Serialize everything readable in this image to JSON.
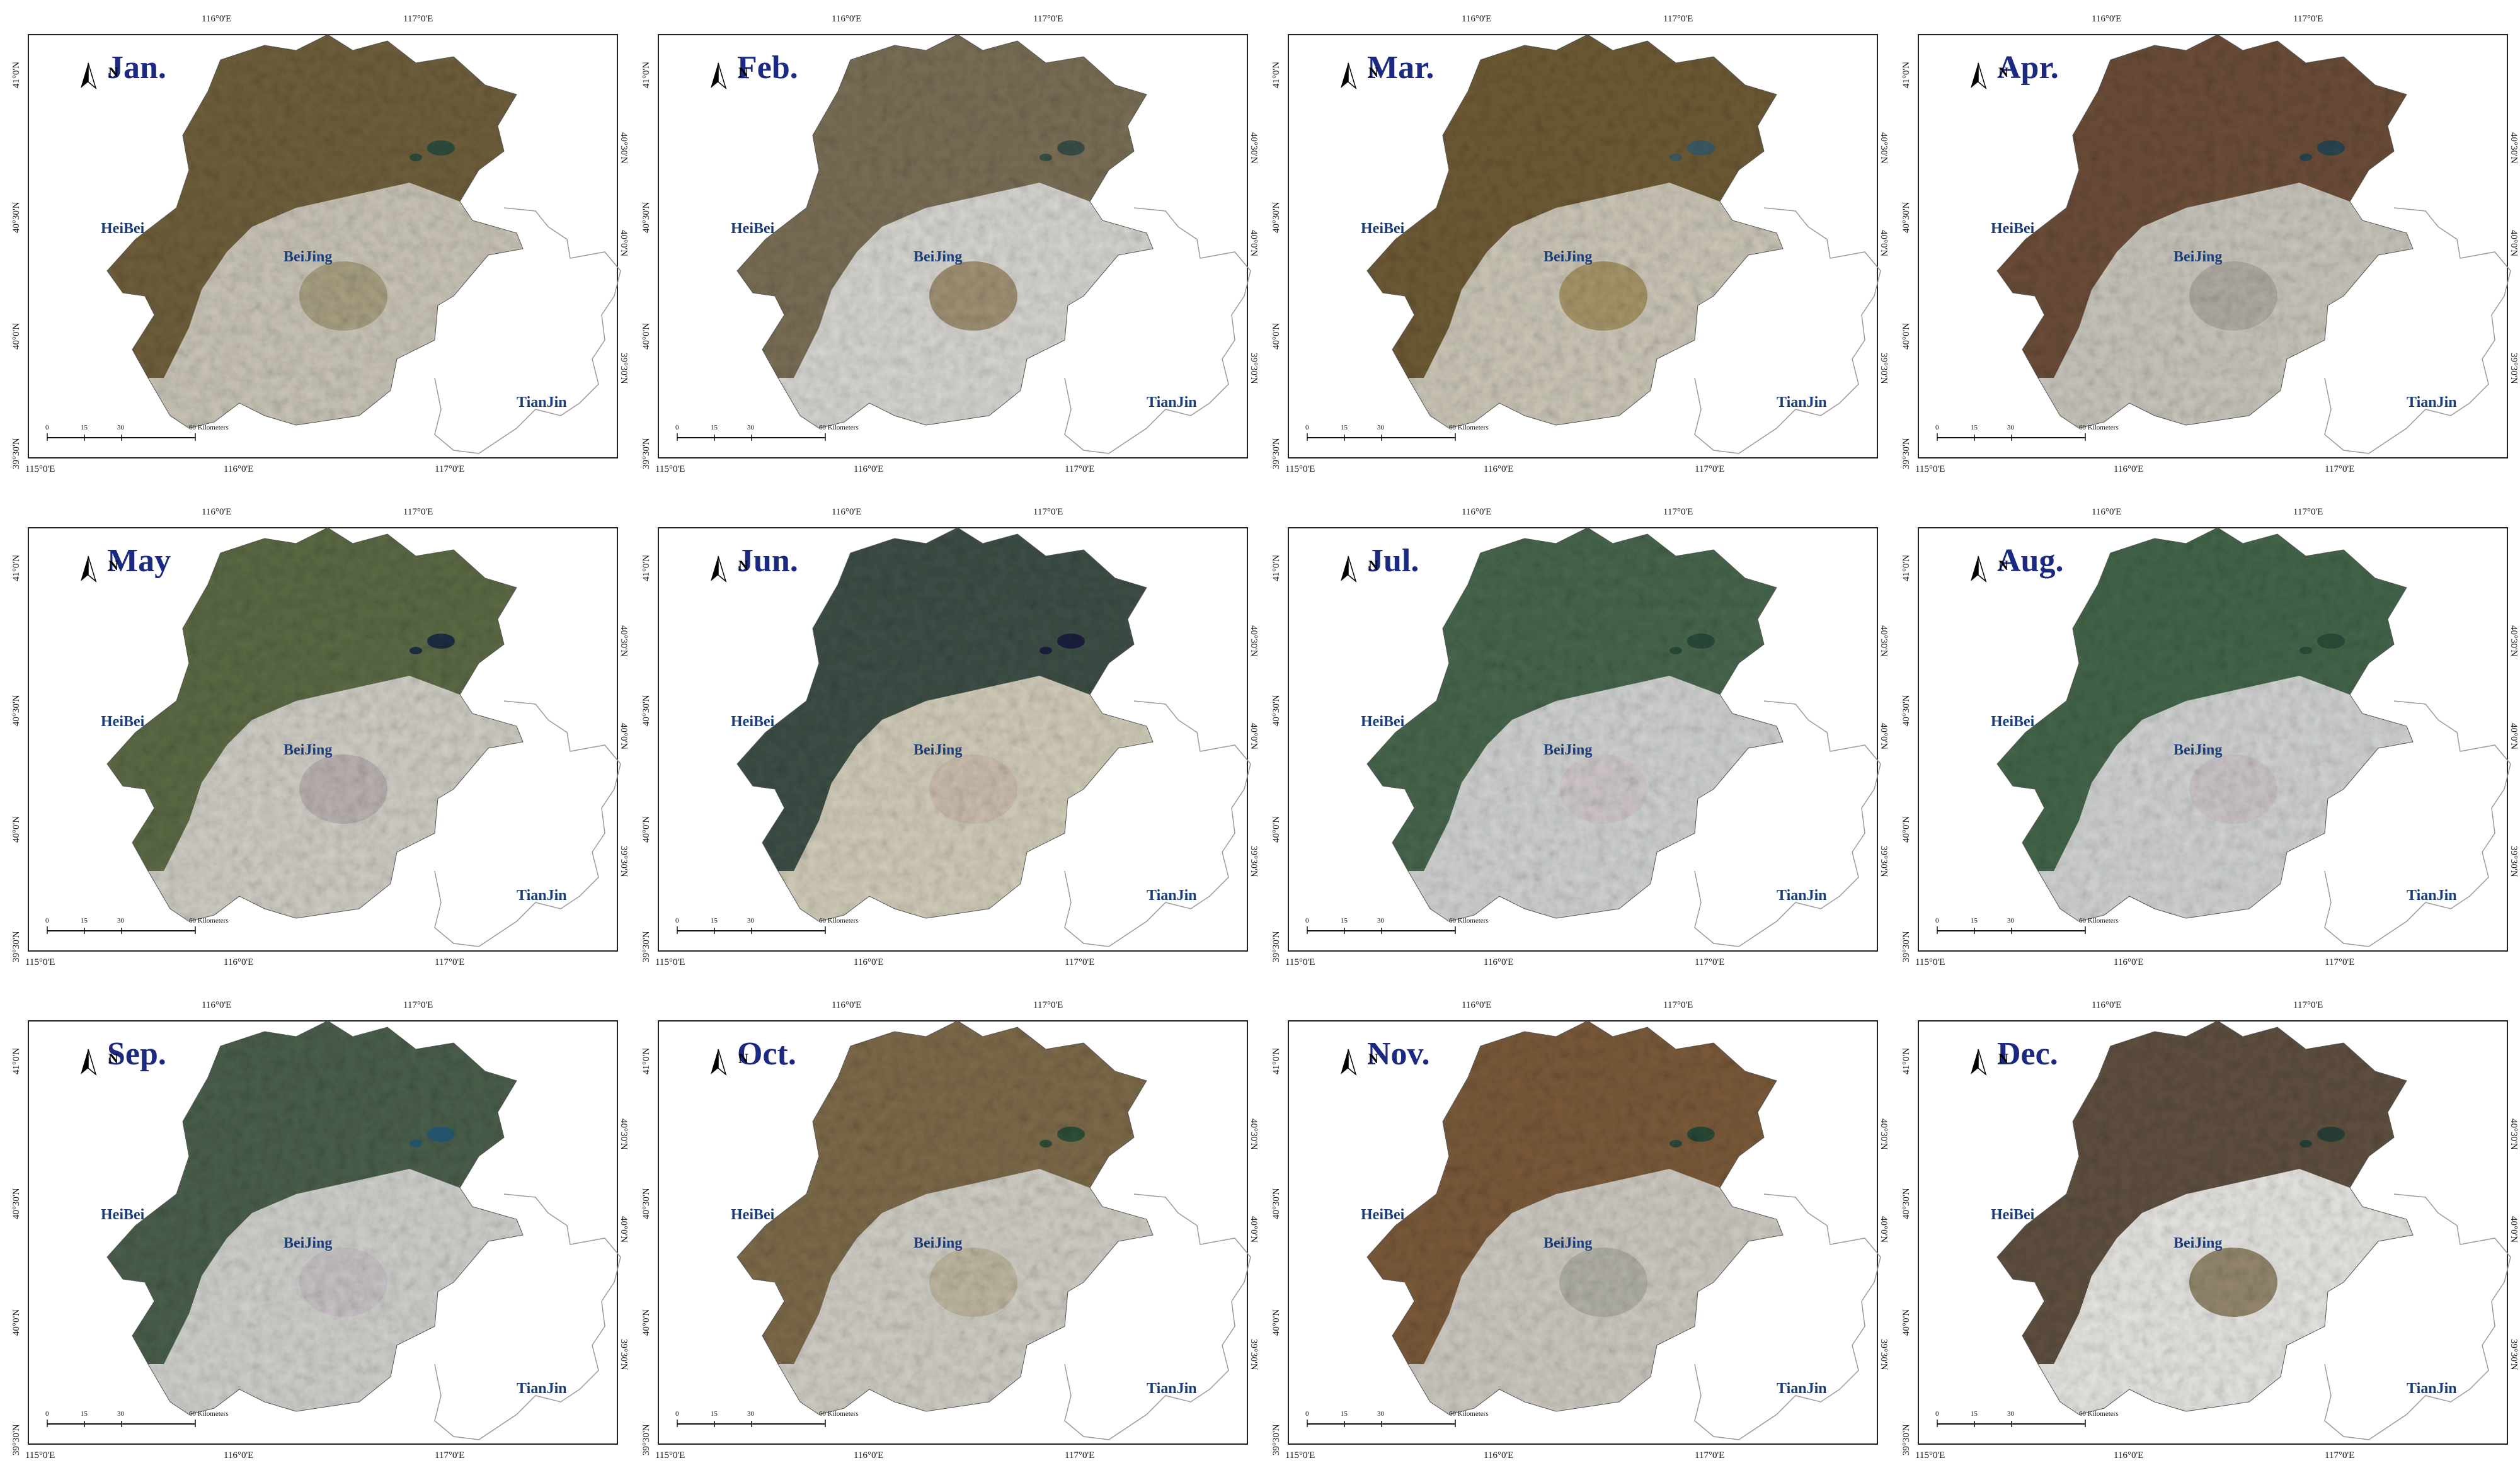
{
  "panels": [
    {
      "month": "Jan.",
      "palette": {
        "mountain": "#6f5f3c",
        "plain": "#c9c4b6",
        "urban": "#9c9470",
        "water": "#2f4d3e"
      }
    },
    {
      "month": "Feb.",
      "palette": {
        "mountain": "#7a6e56",
        "plain": "#d7d5d0",
        "urban": "#8d7a55",
        "water": "#3a4f48"
      }
    },
    {
      "month": "Mar.",
      "palette": {
        "mountain": "#6e5a35",
        "plain": "#cbc6b6",
        "urban": "#9a8450",
        "water": "#3c5a63"
      }
    },
    {
      "month": "Apr.",
      "palette": {
        "mountain": "#6b4d38",
        "plain": "#c8c5bc",
        "urban": "#aaa39a",
        "water": "#2a4650"
      }
    },
    {
      "month": "May",
      "palette": {
        "mountain": "#5c6a45",
        "plain": "#cfcdc4",
        "urban": "#b4a8ac",
        "water": "#1f2f45"
      }
    },
    {
      "month": "Jun.",
      "palette": {
        "mountain": "#3d4f47",
        "plain": "#d1ccb8",
        "urban": "#c9b8a8",
        "water": "#1c1f3f"
      }
    },
    {
      "month": "Jul.",
      "palette": {
        "mountain": "#48664d",
        "plain": "#cfd2d0",
        "urban": "#cfc3c8",
        "water": "#2b4a3a"
      }
    },
    {
      "month": "Aug.",
      "palette": {
        "mountain": "#44664a",
        "plain": "#d0d3d1",
        "urban": "#cbbfc5",
        "water": "#2d4d3a"
      }
    },
    {
      "month": "Sep.",
      "palette": {
        "mountain": "#4a5f4c",
        "plain": "#cfd0cc",
        "urban": "#c4bcc3",
        "water": "#255a74"
      }
    },
    {
      "month": "Oct.",
      "palette": {
        "mountain": "#7d6a4a",
        "plain": "#cfcdc4",
        "urban": "#b8ae94",
        "water": "#2f4f3a"
      }
    },
    {
      "month": "Nov.",
      "palette": {
        "mountain": "#7a5a3a",
        "plain": "#cdc9c1",
        "urban": "#a8a89c",
        "water": "#2b4a38"
      }
    },
    {
      "month": "Dec.",
      "palette": {
        "mountain": "#5f5040",
        "plain": "#e6e4e0",
        "urban": "#7a6a48",
        "water": "#2a4038"
      }
    }
  ],
  "place_labels": {
    "heibei": "HeiBei",
    "beijing": "BeiJing",
    "tianjin": "TianJin"
  },
  "graticule": {
    "top": [
      "116°0'E",
      "117°0'E"
    ],
    "bottom": [
      "115°0'E",
      "116°0'E",
      "117°0'E"
    ],
    "left": [
      "41°0'N",
      "40°30'N",
      "40°0'N",
      "39°30'N"
    ],
    "right": [
      "40°30'N",
      "40°0'N",
      "39°30'N"
    ]
  },
  "scale_bar": {
    "ticks": [
      "0",
      "15",
      "30",
      "60 Kilometers"
    ]
  },
  "north_arrow": {
    "letter": "N"
  }
}
